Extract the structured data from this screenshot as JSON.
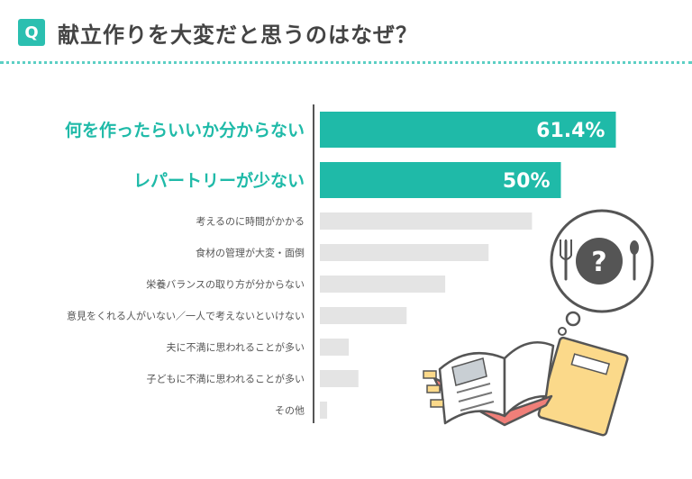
{
  "header": {
    "badge": "Q",
    "question": "献立作りを大変だと思うのはなぜ？"
  },
  "colors": {
    "accent": "#1fbaa8",
    "bar_muted": "#e4e4e4",
    "highlight_text": "#1fbaa8",
    "muted_text": "#555555"
  },
  "illustration": {
    "icon": "plate-question-icon",
    "book": "recipe-book-icon",
    "glyph": "?"
  },
  "chart_data": {
    "type": "bar",
    "orientation": "horizontal",
    "categories": [
      "何を作ったらいいか分からない",
      "レパートリーが少ない",
      "考えるのに時間がかかる",
      "食材の管理が大変・面倒",
      "栄養バランスの取り方が分からない",
      "意見をくれる人がいない／一人で考えないといけない",
      "夫に不満に思われることが多い",
      "子どもに不満に思われることが多い",
      "その他"
    ],
    "values": [
      61.4,
      50,
      44,
      35,
      26,
      18,
      6,
      8,
      1.5
    ],
    "value_labels": [
      "61.4%",
      "50%",
      "",
      "",
      "",
      "",
      "",
      "",
      ""
    ],
    "highlighted": [
      true,
      true,
      false,
      false,
      false,
      false,
      false,
      false,
      false
    ],
    "xlim": [
      0,
      100
    ]
  }
}
